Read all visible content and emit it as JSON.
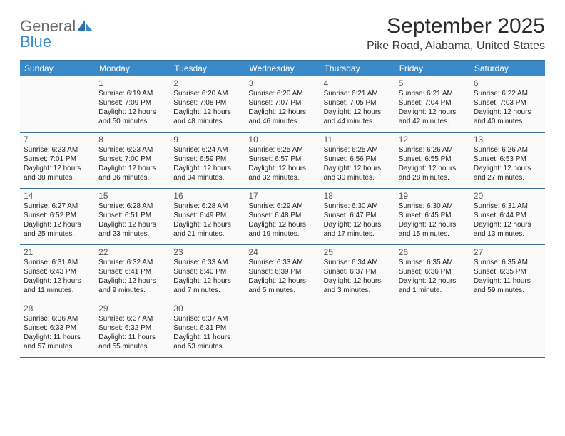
{
  "logo": {
    "text1": "General",
    "text2": "Blue"
  },
  "title": "September 2025",
  "location": "Pike Road, Alabama, United States",
  "dow": [
    "Sunday",
    "Monday",
    "Tuesday",
    "Wednesday",
    "Thursday",
    "Friday",
    "Saturday"
  ],
  "colors": {
    "header_bg": "#3a8ac9",
    "header_text": "#ffffff",
    "cell_bg": "#fafafa",
    "border": "#3a6a9a",
    "logo_gray": "#6a6a6a",
    "logo_blue": "#3a8ac9",
    "title_color": "#2b2b2b",
    "body_text": "#222222",
    "daynum_color": "#555555"
  },
  "typography": {
    "title_fontsize": 30,
    "location_fontsize": 16,
    "dow_fontsize": 12,
    "daynum_fontsize": 12,
    "body_fontsize": 10,
    "logo_fontsize": 22
  },
  "layout": {
    "columns": 7,
    "rows": 5,
    "cell_min_height": 78
  },
  "weeks": [
    [
      {
        "empty": true
      },
      {
        "num": "1",
        "sunrise": "Sunrise: 6:19 AM",
        "sunset": "Sunset: 7:09 PM",
        "day1": "Daylight: 12 hours",
        "day2": "and 50 minutes."
      },
      {
        "num": "2",
        "sunrise": "Sunrise: 6:20 AM",
        "sunset": "Sunset: 7:08 PM",
        "day1": "Daylight: 12 hours",
        "day2": "and 48 minutes."
      },
      {
        "num": "3",
        "sunrise": "Sunrise: 6:20 AM",
        "sunset": "Sunset: 7:07 PM",
        "day1": "Daylight: 12 hours",
        "day2": "and 46 minutes."
      },
      {
        "num": "4",
        "sunrise": "Sunrise: 6:21 AM",
        "sunset": "Sunset: 7:05 PM",
        "day1": "Daylight: 12 hours",
        "day2": "and 44 minutes."
      },
      {
        "num": "5",
        "sunrise": "Sunrise: 6:21 AM",
        "sunset": "Sunset: 7:04 PM",
        "day1": "Daylight: 12 hours",
        "day2": "and 42 minutes."
      },
      {
        "num": "6",
        "sunrise": "Sunrise: 6:22 AM",
        "sunset": "Sunset: 7:03 PM",
        "day1": "Daylight: 12 hours",
        "day2": "and 40 minutes."
      }
    ],
    [
      {
        "num": "7",
        "sunrise": "Sunrise: 6:23 AM",
        "sunset": "Sunset: 7:01 PM",
        "day1": "Daylight: 12 hours",
        "day2": "and 38 minutes."
      },
      {
        "num": "8",
        "sunrise": "Sunrise: 6:23 AM",
        "sunset": "Sunset: 7:00 PM",
        "day1": "Daylight: 12 hours",
        "day2": "and 36 minutes."
      },
      {
        "num": "9",
        "sunrise": "Sunrise: 6:24 AM",
        "sunset": "Sunset: 6:59 PM",
        "day1": "Daylight: 12 hours",
        "day2": "and 34 minutes."
      },
      {
        "num": "10",
        "sunrise": "Sunrise: 6:25 AM",
        "sunset": "Sunset: 6:57 PM",
        "day1": "Daylight: 12 hours",
        "day2": "and 32 minutes."
      },
      {
        "num": "11",
        "sunrise": "Sunrise: 6:25 AM",
        "sunset": "Sunset: 6:56 PM",
        "day1": "Daylight: 12 hours",
        "day2": "and 30 minutes."
      },
      {
        "num": "12",
        "sunrise": "Sunrise: 6:26 AM",
        "sunset": "Sunset: 6:55 PM",
        "day1": "Daylight: 12 hours",
        "day2": "and 28 minutes."
      },
      {
        "num": "13",
        "sunrise": "Sunrise: 6:26 AM",
        "sunset": "Sunset: 6:53 PM",
        "day1": "Daylight: 12 hours",
        "day2": "and 27 minutes."
      }
    ],
    [
      {
        "num": "14",
        "sunrise": "Sunrise: 6:27 AM",
        "sunset": "Sunset: 6:52 PM",
        "day1": "Daylight: 12 hours",
        "day2": "and 25 minutes."
      },
      {
        "num": "15",
        "sunrise": "Sunrise: 6:28 AM",
        "sunset": "Sunset: 6:51 PM",
        "day1": "Daylight: 12 hours",
        "day2": "and 23 minutes."
      },
      {
        "num": "16",
        "sunrise": "Sunrise: 6:28 AM",
        "sunset": "Sunset: 6:49 PM",
        "day1": "Daylight: 12 hours",
        "day2": "and 21 minutes."
      },
      {
        "num": "17",
        "sunrise": "Sunrise: 6:29 AM",
        "sunset": "Sunset: 6:48 PM",
        "day1": "Daylight: 12 hours",
        "day2": "and 19 minutes."
      },
      {
        "num": "18",
        "sunrise": "Sunrise: 6:30 AM",
        "sunset": "Sunset: 6:47 PM",
        "day1": "Daylight: 12 hours",
        "day2": "and 17 minutes."
      },
      {
        "num": "19",
        "sunrise": "Sunrise: 6:30 AM",
        "sunset": "Sunset: 6:45 PM",
        "day1": "Daylight: 12 hours",
        "day2": "and 15 minutes."
      },
      {
        "num": "20",
        "sunrise": "Sunrise: 6:31 AM",
        "sunset": "Sunset: 6:44 PM",
        "day1": "Daylight: 12 hours",
        "day2": "and 13 minutes."
      }
    ],
    [
      {
        "num": "21",
        "sunrise": "Sunrise: 6:31 AM",
        "sunset": "Sunset: 6:43 PM",
        "day1": "Daylight: 12 hours",
        "day2": "and 11 minutes."
      },
      {
        "num": "22",
        "sunrise": "Sunrise: 6:32 AM",
        "sunset": "Sunset: 6:41 PM",
        "day1": "Daylight: 12 hours",
        "day2": "and 9 minutes."
      },
      {
        "num": "23",
        "sunrise": "Sunrise: 6:33 AM",
        "sunset": "Sunset: 6:40 PM",
        "day1": "Daylight: 12 hours",
        "day2": "and 7 minutes."
      },
      {
        "num": "24",
        "sunrise": "Sunrise: 6:33 AM",
        "sunset": "Sunset: 6:39 PM",
        "day1": "Daylight: 12 hours",
        "day2": "and 5 minutes."
      },
      {
        "num": "25",
        "sunrise": "Sunrise: 6:34 AM",
        "sunset": "Sunset: 6:37 PM",
        "day1": "Daylight: 12 hours",
        "day2": "and 3 minutes."
      },
      {
        "num": "26",
        "sunrise": "Sunrise: 6:35 AM",
        "sunset": "Sunset: 6:36 PM",
        "day1": "Daylight: 12 hours",
        "day2": "and 1 minute."
      },
      {
        "num": "27",
        "sunrise": "Sunrise: 6:35 AM",
        "sunset": "Sunset: 6:35 PM",
        "day1": "Daylight: 11 hours",
        "day2": "and 59 minutes."
      }
    ],
    [
      {
        "num": "28",
        "sunrise": "Sunrise: 6:36 AM",
        "sunset": "Sunset: 6:33 PM",
        "day1": "Daylight: 11 hours",
        "day2": "and 57 minutes."
      },
      {
        "num": "29",
        "sunrise": "Sunrise: 6:37 AM",
        "sunset": "Sunset: 6:32 PM",
        "day1": "Daylight: 11 hours",
        "day2": "and 55 minutes."
      },
      {
        "num": "30",
        "sunrise": "Sunrise: 6:37 AM",
        "sunset": "Sunset: 6:31 PM",
        "day1": "Daylight: 11 hours",
        "day2": "and 53 minutes."
      },
      {
        "empty": true
      },
      {
        "empty": true
      },
      {
        "empty": true
      },
      {
        "empty": true
      }
    ]
  ]
}
